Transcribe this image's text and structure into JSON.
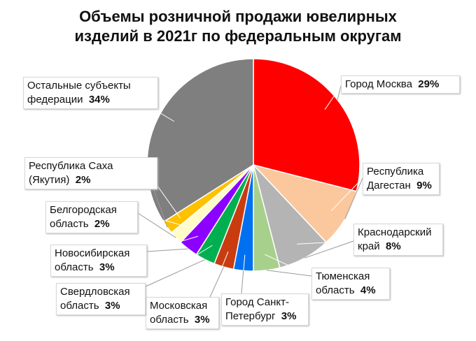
{
  "chart_data": {
    "type": "pie",
    "title": "Объемы розничной продажи ювелирных изделий  в 2021г по федеральным округам",
    "categories": [
      "Город Москва",
      "Республика Дагестан",
      "Краснодарский край",
      "Тюменская область",
      "Город Санкт-Петербург",
      "Московская область",
      "Свердловская область",
      "Новосибирская область",
      "Белгородская область",
      "Республика Саха (Якутия)",
      "Остальные субъекты федерации"
    ],
    "values": [
      29,
      9,
      8,
      4,
      3,
      3,
      3,
      3,
      2,
      2,
      34
    ],
    "value_labels": [
      "29%",
      "9%",
      "8%",
      "4%",
      "3%",
      "3%",
      "3%",
      "3%",
      "2%",
      "2%",
      "34%"
    ],
    "colors": [
      "#ff0000",
      "#fbc79d",
      "#b4b4b4",
      "#a8d08d",
      "#0070f0",
      "#c83c10",
      "#00b050",
      "#8b00ff",
      "#fffcc8",
      "#ffc000",
      "#7f7f7f"
    ]
  }
}
